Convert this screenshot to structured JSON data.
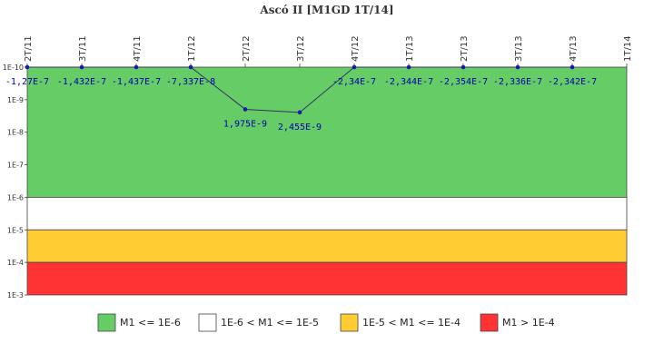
{
  "chart_data": {
    "type": "line",
    "title": "Ascó II [M1GD 1T/14]",
    "categories": [
      "2T/11",
      "3T/11",
      "4T/11",
      "1T/12",
      "2T/12",
      "3T/12",
      "4T/12",
      "1T/13",
      "2T/13",
      "3T/13",
      "4T/13",
      "1T/14"
    ],
    "series": [
      {
        "values": [
          -1.27e-07,
          -1.432e-07,
          -1.437e-07,
          -7.337e-08,
          1.975e-09,
          2.455e-09,
          -2.34e-07,
          -2.344e-07,
          -2.354e-07,
          -2.336e-07,
          -2.342e-07,
          null
        ],
        "data_labels": [
          "-1,27E-7",
          "-1,432E-7",
          "-1,437E-7",
          "-7,337E-8",
          "1,975E-9",
          "2,455E-9",
          "-2,34E-7",
          "-2,344E-7",
          "-2,354E-7",
          "-2,336E-7",
          "-2,342E-7",
          ""
        ],
        "color": "#333366"
      }
    ],
    "y_scale": "log",
    "y_reversed": true,
    "y_range": [
      1e-10,
      0.001
    ],
    "y_ticks": [
      "1E-10",
      "1E-9",
      "1E-8",
      "1E-7",
      "1E-6",
      "1E-5",
      "1E-4",
      "1E-3"
    ],
    "bands": [
      {
        "from": 1e-10,
        "to": 1e-06,
        "color": "#66cc66",
        "label": "M1 <= 1E-6"
      },
      {
        "from": 1e-06,
        "to": 1e-05,
        "color": "#ffffff",
        "label": "1E-6 < M1 <= 1E-5"
      },
      {
        "from": 1e-05,
        "to": 0.0001,
        "color": "#ffcc33",
        "label": "1E-5 < M1 <= 1E-4"
      },
      {
        "from": 0.0001,
        "to": 0.001,
        "color": "#ff3333",
        "label": "M1 > 1E-4"
      }
    ],
    "legend_position": "bottom"
  }
}
